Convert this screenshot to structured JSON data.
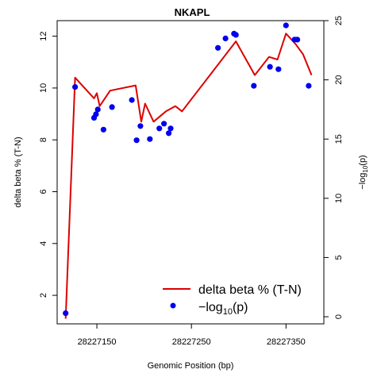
{
  "chart_data": {
    "type": "line",
    "title": "NKAPL",
    "xlabel": "Genomic Position (bp)",
    "ylabel_left": "delta beta % (T-N)",
    "ylabel_right_prefix": "−log",
    "ylabel_right_sub": "10",
    "ylabel_right_suffix": "(p)",
    "xlim": [
      28227108,
      28227390
    ],
    "ylim_left": [
      0.9,
      12.6
    ],
    "ylim_right": [
      -0.6,
      25.0
    ],
    "x_ticks": [
      28227150,
      28227250,
      28227350
    ],
    "x_tick_labels": [
      "28227150",
      "28227250",
      "28227350"
    ],
    "y_left_ticks": [
      2,
      4,
      6,
      8,
      10,
      12
    ],
    "y_left_tick_labels": [
      "2",
      "4",
      "6",
      "8",
      "10",
      "12"
    ],
    "y_right_ticks": [
      0,
      5,
      10,
      15,
      20,
      25
    ],
    "y_right_tick_labels": [
      "0",
      "5",
      "10",
      "15",
      "20",
      "25"
    ],
    "legend_position": "bottom-right",
    "series": [
      {
        "name": "delta beta % (T-N)",
        "kind": "line",
        "axis": "left",
        "color": "#dd0000",
        "x": [
          28227117,
          28227127,
          28227147,
          28227150,
          28227153,
          28227164,
          28227191,
          28227197,
          28227201,
          28227210,
          28227223,
          28227233,
          28227240,
          28227297,
          28227317,
          28227332,
          28227341,
          28227350,
          28227360,
          28227368,
          28227377
        ],
        "y": [
          1.1,
          10.4,
          9.6,
          9.8,
          9.3,
          9.9,
          10.1,
          8.7,
          9.4,
          8.7,
          9.1,
          9.3,
          9.1,
          11.8,
          10.5,
          11.2,
          11.1,
          12.1,
          11.7,
          11.3,
          10.5
        ]
      },
      {
        "name": "−log10(p)",
        "legend_prefix": "−log",
        "legend_sub": "10",
        "legend_suffix": "(p)",
        "kind": "points",
        "axis": "right",
        "color": "#0000ee",
        "x": [
          28227117,
          28227127,
          28227147,
          28227149,
          28227151,
          28227157,
          28227166,
          28227187,
          28227192,
          28227196,
          28227206,
          28227216,
          28227221,
          28227226,
          28227228,
          28227278,
          28227286,
          28227295,
          28227297,
          28227316,
          28227333,
          28227342,
          28227350,
          28227359,
          28227362,
          28227374
        ],
        "y": [
          0.3,
          19.4,
          16.8,
          17.1,
          17.5,
          15.8,
          17.7,
          18.3,
          14.9,
          16.1,
          15.0,
          15.9,
          16.3,
          15.5,
          15.9,
          22.7,
          23.5,
          23.9,
          23.8,
          19.5,
          21.1,
          20.9,
          24.6,
          23.4,
          23.4,
          19.5
        ]
      }
    ]
  }
}
